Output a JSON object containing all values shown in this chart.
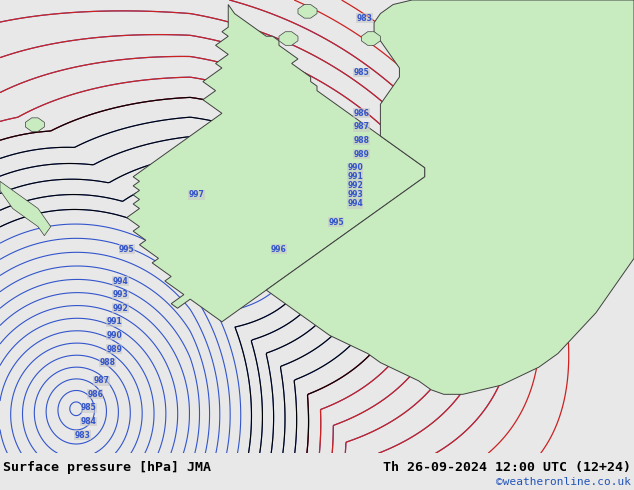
{
  "title": "Surface pressure [hPa] JMA",
  "date_str": "Th 26-09-2024 12:00 UTC (12+24)",
  "credit": "©weatheronline.co.uk",
  "land_color": "#c8ecc0",
  "sea_color": "#c8c8c8",
  "isobar_blue": "#3355cc",
  "isobar_red": "#cc2222",
  "isobar_black": "#000000",
  "bottom_bg": "#e8e8e8",
  "bottom_text": "#000000",
  "credit_color": "#2255bb",
  "figsize": [
    6.34,
    4.9
  ],
  "dpi": 100,
  "norway_x": [
    35,
    34,
    33,
    32,
    31,
    30,
    30,
    31,
    32,
    33,
    34,
    35,
    36,
    37,
    38,
    39,
    40,
    41,
    42,
    43,
    43,
    42,
    41,
    40,
    39,
    38,
    37,
    36,
    35,
    36,
    37,
    38,
    39,
    40,
    41,
    42,
    43,
    44,
    44,
    43,
    42,
    41,
    40,
    39,
    38,
    37,
    36,
    35,
    34,
    33,
    32,
    31,
    30,
    29,
    28,
    27,
    26,
    25,
    24,
    23,
    22,
    21,
    20,
    19,
    18,
    17,
    16,
    17,
    18,
    19,
    20,
    21,
    22,
    23,
    24,
    25,
    26,
    27,
    28,
    29,
    30,
    31,
    32,
    33,
    34,
    35
  ],
  "norway_y": [
    98,
    96,
    94,
    92,
    90,
    88,
    86,
    84,
    82,
    80,
    78,
    76,
    74,
    72,
    70,
    68,
    66,
    64,
    62,
    60,
    58,
    56,
    54,
    52,
    50,
    48,
    46,
    44,
    42,
    40,
    38,
    36,
    34,
    32,
    30,
    28,
    26,
    24,
    22,
    20,
    18,
    16,
    14,
    12,
    10,
    8,
    6,
    4,
    2,
    2,
    4,
    6,
    8,
    10,
    12,
    14,
    16,
    18,
    20,
    22,
    24,
    26,
    28,
    30,
    32,
    34,
    36,
    38,
    40,
    42,
    44,
    46,
    48,
    50,
    52,
    54,
    56,
    58,
    60,
    62,
    64,
    66,
    68,
    70,
    72,
    74
  ],
  "sweden_x": [
    43,
    44,
    45,
    46,
    47,
    48,
    49,
    50,
    51,
    52,
    53,
    54,
    55,
    56,
    57,
    58,
    59,
    60,
    61,
    62,
    63,
    64,
    65,
    66,
    67,
    68,
    69,
    70,
    71,
    72,
    73,
    74,
    75,
    76,
    77,
    78,
    79,
    80,
    81,
    82,
    83,
    84,
    85,
    86,
    87,
    88,
    89,
    90,
    91,
    92,
    93,
    94,
    95,
    96,
    97,
    98,
    99,
    100,
    100,
    100,
    100,
    100,
    100,
    100,
    99,
    98,
    97,
    96,
    95,
    94,
    93,
    92,
    91,
    90,
    89,
    88,
    87,
    86,
    85,
    84,
    83,
    82,
    81,
    80,
    79,
    78,
    77,
    76,
    75,
    74,
    73,
    72,
    71,
    70,
    69,
    68,
    67,
    66,
    65,
    64,
    63,
    62,
    61,
    60,
    59,
    58,
    57,
    56,
    55,
    54,
    53,
    52,
    51,
    50,
    49,
    48,
    47,
    46,
    45,
    44,
    43
  ],
  "sweden_y": [
    60,
    60,
    61,
    62,
    63,
    64,
    65,
    66,
    67,
    68,
    69,
    70,
    71,
    72,
    73,
    74,
    75,
    76,
    77,
    78,
    79,
    80,
    81,
    82,
    83,
    84,
    85,
    86,
    87,
    88,
    89,
    90,
    91,
    92,
    93,
    94,
    95,
    96,
    97,
    98,
    99,
    100,
    100,
    100,
    100,
    100,
    100,
    100,
    100,
    100,
    100,
    100,
    100,
    100,
    100,
    100,
    100,
    100,
    95,
    90,
    85,
    80,
    75,
    70,
    65,
    60,
    55,
    50,
    45,
    40,
    35,
    30,
    25,
    20,
    15,
    10,
    5,
    2,
    2,
    4,
    6,
    8,
    10,
    12,
    14,
    16,
    18,
    20,
    22,
    24,
    26,
    28,
    30,
    32,
    34,
    36,
    38,
    40,
    42,
    44,
    46,
    48,
    50,
    52,
    54,
    56,
    58,
    60,
    62,
    64,
    65,
    64,
    63,
    62,
    61,
    60,
    59,
    58,
    57,
    56,
    55
  ],
  "xlim": [
    0,
    100
  ],
  "ylim": [
    0,
    100
  ]
}
